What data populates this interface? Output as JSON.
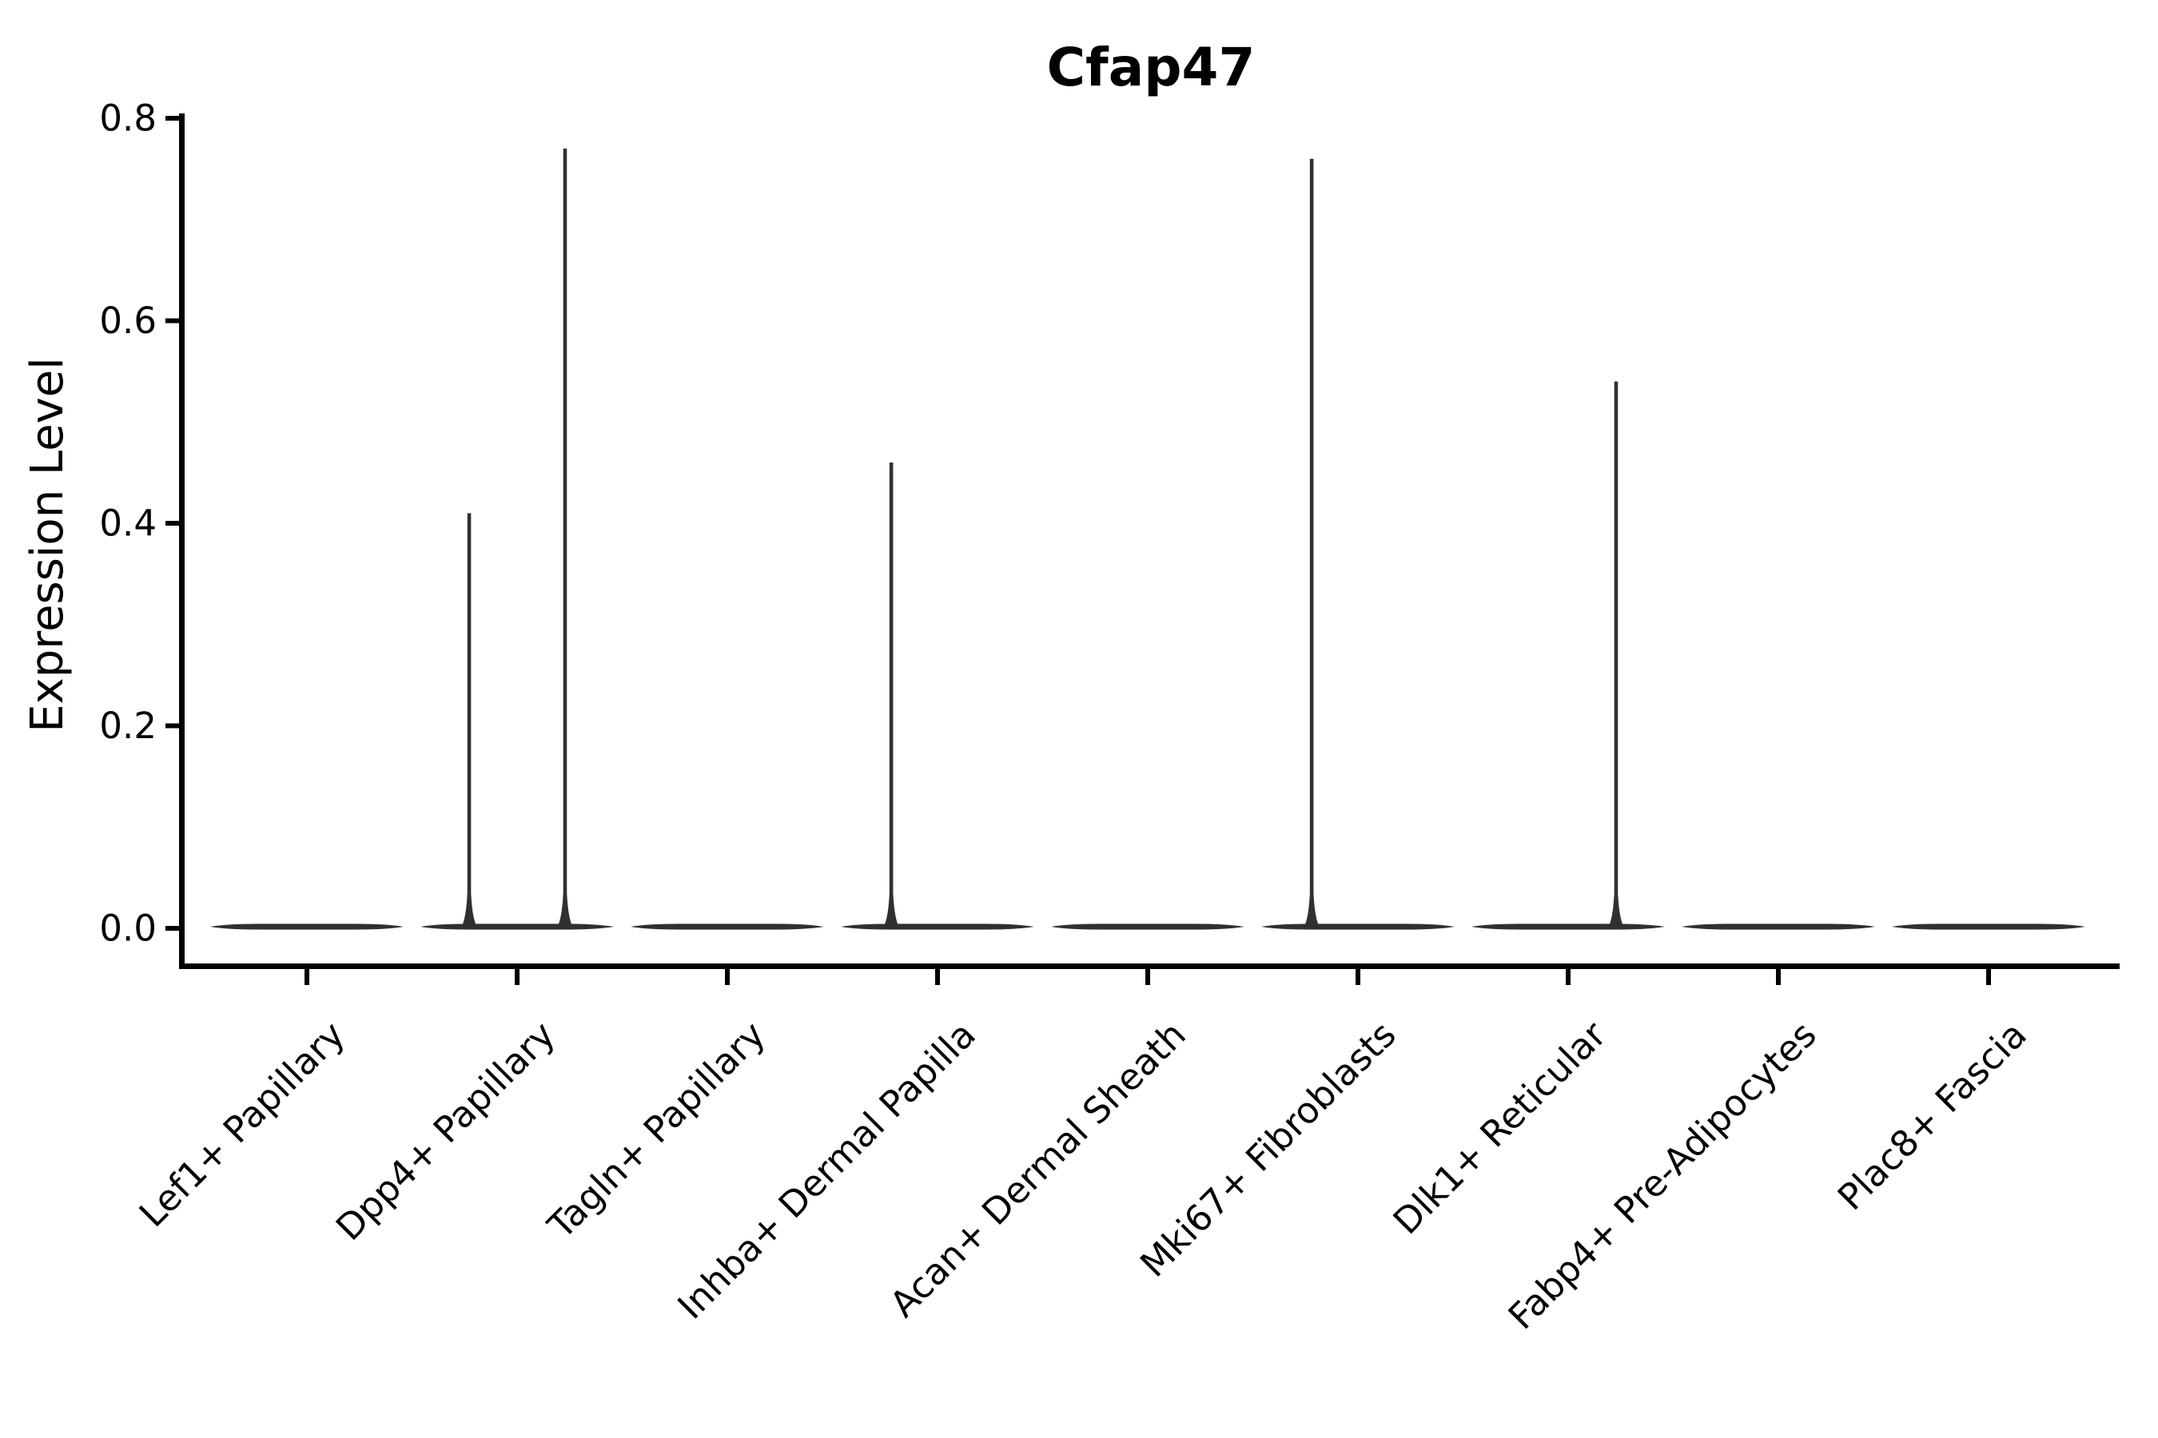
{
  "chart_data": {
    "type": "violin",
    "title": "Cfap47",
    "xlabel": "",
    "ylabel": "Expression Level",
    "ylim": [
      0.0,
      0.8
    ],
    "yticks": [
      "0.0",
      "0.2",
      "0.4",
      "0.6",
      "0.8"
    ],
    "grid": false,
    "legend": "none",
    "categories": [
      "Lef1+ Papillary",
      "Dpp4+ Papillary",
      "Tagln+ Papillary",
      "Inhba+ Dermal Papilla",
      "Acan+ Dermal Sheath",
      "Mki67+ Fibroblasts",
      "Dlk1+ Reticular",
      "Fabp4+ Pre-Adipocytes",
      "Plac8+ Fascia"
    ],
    "violins": [
      {
        "category": "Lef1+ Papillary",
        "baseline_value": 0.0,
        "spikes": []
      },
      {
        "category": "Dpp4+ Papillary",
        "baseline_value": 0.0,
        "spikes": [
          {
            "offset_frac": -0.228,
            "value": 0.41
          },
          {
            "offset_frac": 0.228,
            "value": 0.77
          }
        ]
      },
      {
        "category": "Tagln+ Papillary",
        "baseline_value": 0.0,
        "spikes": []
      },
      {
        "category": "Inhba+ Dermal Papilla",
        "baseline_value": 0.0,
        "spikes": [
          {
            "offset_frac": -0.22,
            "value": 0.46
          }
        ]
      },
      {
        "category": "Acan+ Dermal Sheath",
        "baseline_value": 0.0,
        "spikes": []
      },
      {
        "category": "Mki67+ Fibroblasts",
        "baseline_value": 0.0,
        "spikes": [
          {
            "offset_frac": -0.22,
            "value": 0.76
          }
        ]
      },
      {
        "category": "Dlk1+ Reticular",
        "baseline_value": 0.0,
        "spikes": [
          {
            "offset_frac": 0.228,
            "value": 0.54
          }
        ]
      },
      {
        "category": "Fabp4+ Pre-Adipocytes",
        "baseline_value": 0.0,
        "spikes": []
      },
      {
        "category": "Plac8+ Fascia",
        "baseline_value": 0.0,
        "spikes": []
      }
    ],
    "violin_color": "#303030",
    "axis_color": "#000000",
    "text_color": "#000000",
    "background_color": "#ffffff"
  }
}
